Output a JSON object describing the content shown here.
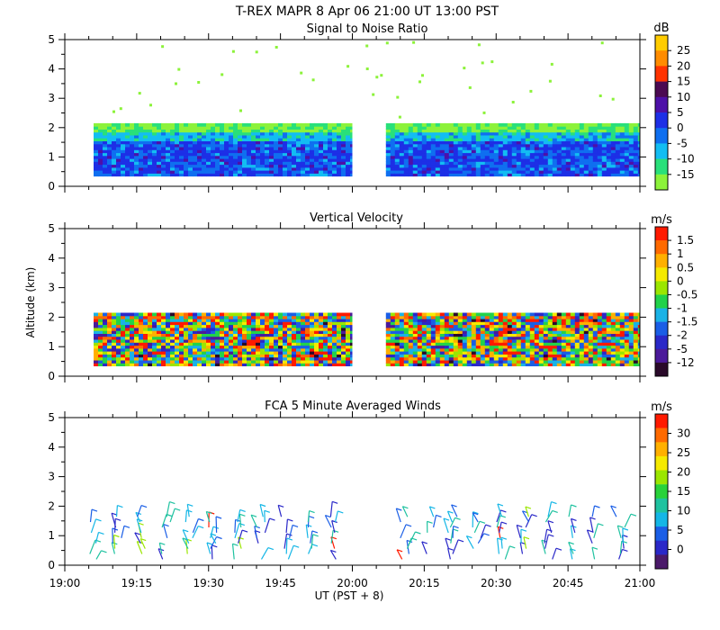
{
  "title": "T-REX  MAPR  8 Apr 06  21:00 UT  13:00  PST",
  "x_axis": {
    "label": "UT  (PST + 8)",
    "ticks": [
      "19:00",
      "19:15",
      "19:30",
      "19:45",
      "20:00",
      "20:15",
      "20:30",
      "20:45",
      "21:00"
    ]
  },
  "chart_data": [
    {
      "type": "heatmap",
      "title": "Signal to Noise Ratio",
      "ylabel": "",
      "ylim": [
        0,
        5
      ],
      "y_ticks": [
        "0",
        "1",
        "2",
        "3",
        "4",
        "5"
      ],
      "x_range": [
        "19:00",
        "21:00"
      ],
      "data_gap": [
        "20:00",
        "20:07"
      ],
      "colorbar": {
        "unit": "dB",
        "labels": [
          "25",
          "20",
          "15",
          "10",
          "5",
          "0",
          "-5",
          "-10",
          "-15"
        ],
        "colors": [
          "#ffcc00",
          "#ff8c00",
          "#ff3300",
          "#4b0a52",
          "#4d10a8",
          "#1d2fe6",
          "#0f6ff0",
          "#13bdf2",
          "#29e07a",
          "#8cf23a"
        ]
      }
    },
    {
      "type": "heatmap",
      "title": "Vertical Velocity",
      "ylabel": "Altitude (km)",
      "ylim": [
        0,
        5
      ],
      "y_ticks": [
        "0",
        "1",
        "2",
        "3",
        "4",
        "5"
      ],
      "x_range": [
        "19:00",
        "21:00"
      ],
      "data_gap": [
        "20:00",
        "20:07"
      ],
      "colorbar": {
        "unit": "m/s",
        "labels": [
          "1.5",
          "1",
          "0.5",
          "0",
          "-0.5",
          "-1",
          "-1.5",
          "-2",
          "-5",
          "-12"
        ],
        "colors": [
          "#ff1a00",
          "#ff6a00",
          "#ffb000",
          "#f5ea00",
          "#9be600",
          "#22d24a",
          "#1ab2e6",
          "#1a5ee6",
          "#2a28c8",
          "#4b1a9a",
          "#2a0a2a"
        ]
      }
    },
    {
      "type": "scatter",
      "title": "FCA 5 Minute Averaged Winds",
      "ylabel": "",
      "ylim": [
        0,
        5
      ],
      "y_ticks": [
        "0",
        "1",
        "2",
        "3",
        "4",
        "5"
      ],
      "x_range": [
        "19:00",
        "21:00"
      ],
      "marker": "wind barbs",
      "colorbar": {
        "unit": "m/s",
        "labels": [
          "30",
          "25",
          "20",
          "15",
          "10",
          "5",
          "0"
        ],
        "colors": [
          "#ff1a00",
          "#ff6a00",
          "#ffb000",
          "#f5ea00",
          "#9be600",
          "#28d23a",
          "#1fc2a0",
          "#14b6e6",
          "#1a5ee6",
          "#2a28c8",
          "#4b1a6a"
        ]
      }
    }
  ]
}
